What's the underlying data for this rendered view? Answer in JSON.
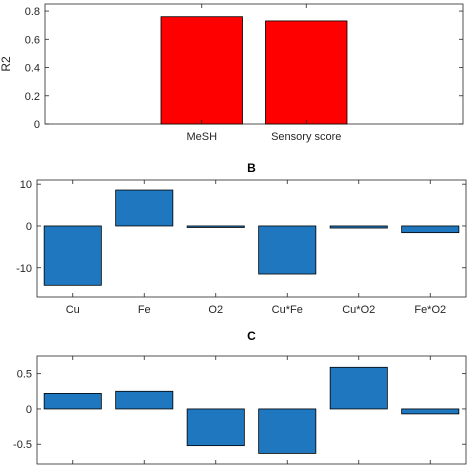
{
  "chart_data": [
    {
      "type": "bar",
      "title": "",
      "ylabel": "R2",
      "xlabel": "",
      "categories": [
        "",
        "MeSH",
        "Sensory score",
        ""
      ],
      "values": [
        null,
        0.76,
        0.73,
        null
      ],
      "ylim": [
        0,
        0.85
      ],
      "yticks": [
        0,
        0.2,
        0.4,
        0.6,
        0.8
      ],
      "ytick_labels": [
        "0",
        "0.2",
        "0.4",
        "0.6",
        "0.8"
      ],
      "grid": false,
      "bar_color": "#ff0000"
    },
    {
      "type": "bar",
      "title": "B",
      "ylabel": "",
      "xlabel": "",
      "categories": [
        "Cu",
        "Fe",
        "O2",
        "Cu*Fe",
        "Cu*O2",
        "Fe*O2"
      ],
      "values": [
        -14.2,
        8.6,
        -0.3,
        -11.5,
        -0.5,
        -1.6
      ],
      "ylim": [
        -17,
        11
      ],
      "yticks": [
        -10,
        0,
        10
      ],
      "ytick_labels": [
        "-10",
        "0",
        "10"
      ],
      "grid": false,
      "bar_color": "#1f77c0"
    },
    {
      "type": "bar",
      "title": "C",
      "ylabel": "",
      "xlabel": "",
      "categories": [
        "",
        "",
        "",
        "",
        "",
        ""
      ],
      "values": [
        0.22,
        0.25,
        -0.52,
        -0.63,
        0.59,
        -0.07
      ],
      "ylim": [
        -0.78,
        0.75
      ],
      "yticks": [
        -0.5,
        0,
        0.5
      ],
      "ytick_labels": [
        "-0.5",
        "0",
        "0.5"
      ],
      "grid": false,
      "bar_color": "#1f77c0"
    }
  ]
}
